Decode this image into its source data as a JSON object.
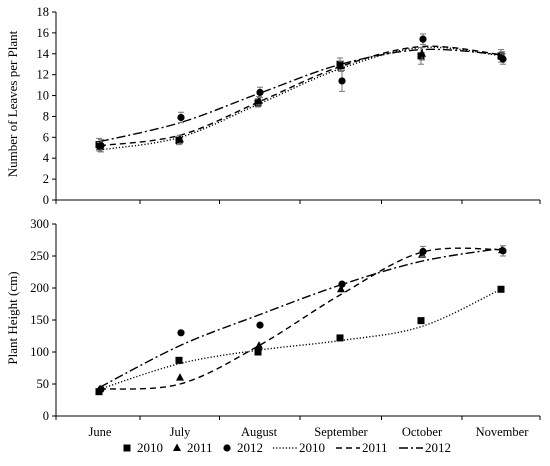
{
  "chart_data": [
    {
      "type": "scatter",
      "ylabel": "Number of Leaves per Plant",
      "ylim": [
        0,
        18
      ],
      "yticks": [
        0,
        2,
        4,
        6,
        8,
        10,
        12,
        14,
        16,
        18
      ],
      "categories": [
        "June",
        "July",
        "August",
        "September",
        "October",
        "November"
      ],
      "series": [
        {
          "name": "2010",
          "marker": "square",
          "values": [
            5.3,
            5.7,
            9.3,
            13.0,
            13.8,
            13.8
          ],
          "errors": [
            0.6,
            0.4,
            0.4,
            0.6,
            0.8,
            0.6
          ]
        },
        {
          "name": "2011",
          "marker": "triangle",
          "values": [
            5.1,
            5.8,
            9.5,
            12.8,
            14.0,
            13.7
          ],
          "errors": [
            0.4,
            0.4,
            0.4,
            0.5,
            0.6,
            0.5
          ]
        },
        {
          "name": "2012",
          "marker": "circle",
          "values": [
            5.2,
            7.9,
            10.3,
            11.4,
            15.4,
            13.5
          ],
          "errors": [
            0.6,
            0.5,
            0.5,
            1.0,
            0.5,
            0.5
          ]
        }
      ],
      "trendlines": [
        {
          "name": "2010",
          "style": "dotted",
          "values": [
            4.8,
            6.0,
            9.2,
            12.6,
            14.6,
            13.8
          ]
        },
        {
          "name": "2011",
          "style": "dashed",
          "values": [
            5.2,
            6.2,
            9.4,
            12.8,
            14.7,
            13.9
          ]
        },
        {
          "name": "2012",
          "style": "dashdot",
          "values": [
            5.6,
            7.4,
            10.2,
            13.0,
            14.4,
            13.9
          ]
        }
      ]
    },
    {
      "type": "scatter",
      "ylabel": "Plant Height (cm)",
      "ylim": [
        0,
        300
      ],
      "yticks": [
        0,
        50,
        100,
        150,
        200,
        250,
        300
      ],
      "categories": [
        "June",
        "July",
        "August",
        "September",
        "October",
        "November"
      ],
      "series": [
        {
          "name": "2010",
          "marker": "square",
          "values": [
            38,
            87,
            100,
            122,
            149,
            198
          ],
          "errors": [
            0,
            0,
            0,
            0,
            0,
            0
          ]
        },
        {
          "name": "2011",
          "marker": "triangle",
          "values": [
            42,
            60,
            110,
            198,
            252,
            259
          ],
          "errors": [
            0,
            0,
            0,
            0,
            0,
            0
          ]
        },
        {
          "name": "2012",
          "marker": "circle",
          "values": [
            42,
            130,
            142,
            206,
            257,
            258
          ],
          "errors": [
            0,
            0,
            0,
            0,
            8,
            8
          ]
        }
      ],
      "trendlines": [
        {
          "name": "2010",
          "style": "dotted",
          "values": [
            42,
            82,
            103,
            118,
            140,
            199
          ]
        },
        {
          "name": "2011",
          "style": "dashed",
          "values": [
            42,
            50,
            110,
            190,
            256,
            260
          ]
        },
        {
          "name": "2012",
          "style": "dashdot",
          "values": [
            45,
            110,
            158,
            205,
            242,
            262
          ]
        }
      ]
    }
  ],
  "legend": {
    "placement": "bottom",
    "items": [
      {
        "label": "2010",
        "kind": "marker",
        "marker": "square"
      },
      {
        "label": "2011",
        "kind": "marker",
        "marker": "triangle"
      },
      {
        "label": "2012",
        "kind": "marker",
        "marker": "circle"
      },
      {
        "label": "2010",
        "kind": "line",
        "style": "dotted"
      },
      {
        "label": "2011",
        "kind": "line",
        "style": "dashed"
      },
      {
        "label": "2012",
        "kind": "line",
        "style": "dashdot"
      }
    ]
  }
}
